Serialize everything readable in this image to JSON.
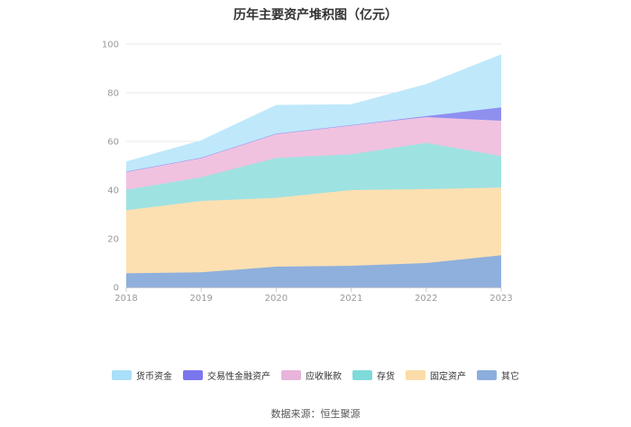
{
  "chart_data": {
    "type": "area",
    "stacked": true,
    "title": "历年主要资产堆积图（亿元）",
    "categories": [
      "2018",
      "2019",
      "2020",
      "2021",
      "2022",
      "2023"
    ],
    "ylim": [
      0,
      100
    ],
    "yticks": [
      0,
      20,
      40,
      60,
      80,
      100
    ],
    "grid": true,
    "legend_position": "bottom",
    "series": [
      {
        "name": "其它",
        "color": "#8fb0dc",
        "values": [
          5.8,
          6.2,
          8.5,
          8.9,
          10.0,
          13.2
        ]
      },
      {
        "name": "固定资产",
        "color": "#fde0b2",
        "values": [
          25.9,
          29.3,
          28.3,
          31.1,
          30.4,
          27.8
        ]
      },
      {
        "name": "存货",
        "color": "#9fe2e2",
        "values": [
          8.4,
          9.8,
          16.4,
          14.7,
          19.0,
          13.0
        ]
      },
      {
        "name": "应收账款",
        "color": "#f0c2e0",
        "values": [
          7.5,
          8.0,
          10.0,
          12.0,
          10.6,
          14.5
        ]
      },
      {
        "name": "交易性金融资产",
        "color": "#8f8ff0",
        "values": [
          0,
          0,
          0,
          0,
          0.4,
          5.5
        ]
      },
      {
        "name": "货币资金",
        "color": "#bfe8fb",
        "values": [
          4.0,
          7.0,
          11.6,
          8.4,
          13.0,
          21.6
        ]
      }
    ],
    "legend_order": [
      "货币资金",
      "交易性金融资产",
      "应收账款",
      "存货",
      "固定资产",
      "其它"
    ]
  },
  "legend_colors": {
    "货币资金": "#a9dff8",
    "交易性金融资产": "#7b76ee",
    "应收账款": "#e8b4dc",
    "存货": "#7fdada",
    "固定资产": "#fcdca8",
    "其它": "#8caedd"
  },
  "source_text": "数据来源：恒生聚源"
}
